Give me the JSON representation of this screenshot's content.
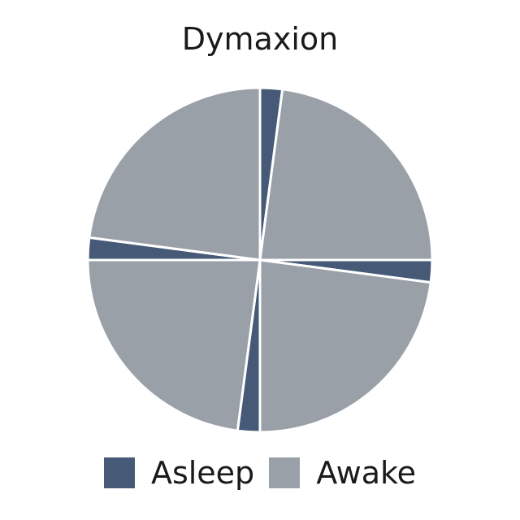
{
  "chart_data": {
    "type": "pie",
    "title": "Dymaxion",
    "start_angle_deg": 90,
    "direction": "clockwise",
    "categories": [
      "Asleep",
      "Awake"
    ],
    "colors": {
      "Asleep": "#465a78",
      "Awake": "#9aa0a8"
    },
    "slices": [
      {
        "label": "Asleep",
        "value": 0.5
      },
      {
        "label": "Awake",
        "value": 5.5
      },
      {
        "label": "Asleep",
        "value": 0.5
      },
      {
        "label": "Awake",
        "value": 5.5
      },
      {
        "label": "Asleep",
        "value": 0.5
      },
      {
        "label": "Awake",
        "value": 5.5
      },
      {
        "label": "Asleep",
        "value": 0.5
      },
      {
        "label": "Awake",
        "value": 5.5
      }
    ],
    "legend": {
      "placement": "bottom",
      "entries": [
        {
          "label": "Asleep",
          "color": "#465a78"
        },
        {
          "label": "Awake",
          "color": "#9aa0a8"
        }
      ]
    }
  }
}
